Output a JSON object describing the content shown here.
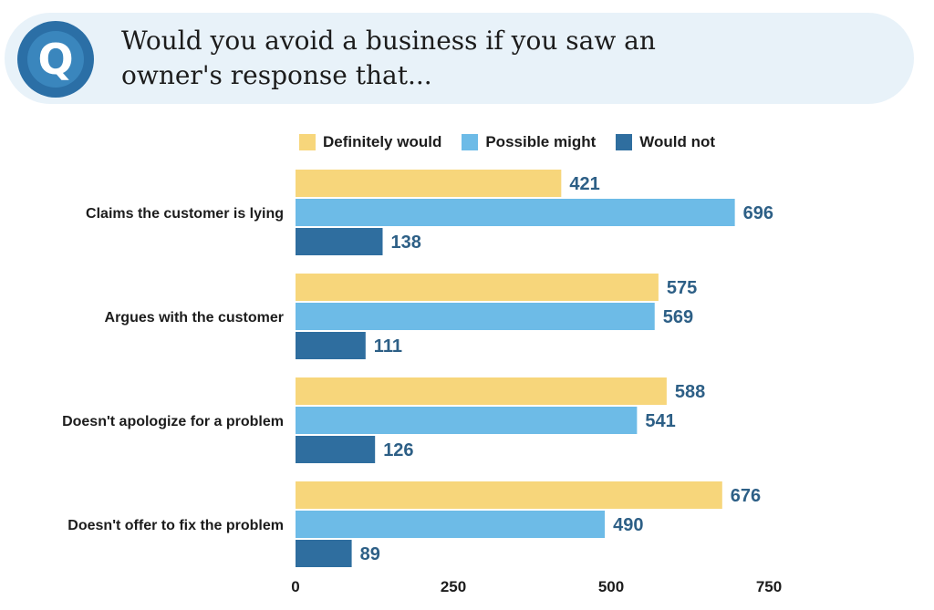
{
  "question": {
    "badge": "Q",
    "line1": "Would you avoid a business if you saw an",
    "line2": "owner's response that..."
  },
  "colors": {
    "banner_bg": "#e8f2f9",
    "badge": "#2b6fa6",
    "definitely_would": "#f7d67b",
    "possible_might": "#6dbbe7",
    "would_not": "#2f6e9f",
    "value_label": "#2d5f86"
  },
  "chart_data": {
    "type": "bar",
    "orientation": "horizontal",
    "categories": [
      "Claims the customer is lying",
      "Argues with the customer",
      "Doesn't apologize for a problem",
      "Doesn't offer to fix the problem"
    ],
    "series": [
      {
        "name": "Definitely would",
        "values": [
          421,
          575,
          588,
          676
        ]
      },
      {
        "name": "Possible might",
        "values": [
          696,
          569,
          541,
          490
        ]
      },
      {
        "name": "Would not",
        "values": [
          138,
          111,
          126,
          89
        ]
      }
    ],
    "xlim": [
      0,
      750
    ],
    "xticks": [
      "0",
      "250",
      "500",
      "750"
    ],
    "legend": "top",
    "grid": false
  }
}
